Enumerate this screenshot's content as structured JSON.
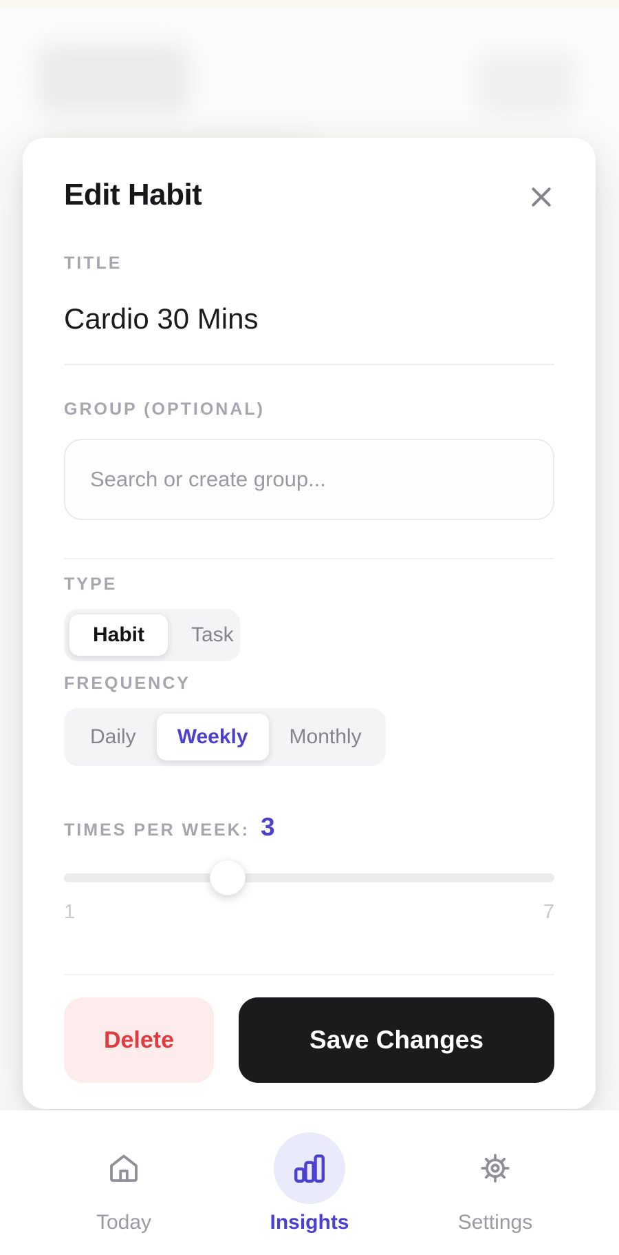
{
  "modal": {
    "title": "Edit Habit",
    "title_field": {
      "label": "TITLE",
      "value": "Cardio 30 Mins"
    },
    "group_field": {
      "label": "GROUP (OPTIONAL)",
      "placeholder": "Search or create group..."
    },
    "type_field": {
      "label": "TYPE",
      "options": [
        "Habit",
        "Task"
      ],
      "selected": "Habit"
    },
    "frequency_field": {
      "label": "FREQUENCY",
      "options": [
        "Daily",
        "Weekly",
        "Monthly"
      ],
      "selected": "Weekly"
    },
    "times_per_week": {
      "label": "TIMES PER WEEK:",
      "value": 3,
      "min": 1,
      "max": 7
    },
    "buttons": {
      "delete": "Delete",
      "save": "Save Changes"
    }
  },
  "nav": {
    "items": [
      {
        "label": "Today",
        "icon": "home-icon",
        "active": false
      },
      {
        "label": "Insights",
        "icon": "bar-chart-icon",
        "active": true
      },
      {
        "label": "Settings",
        "icon": "gear-icon",
        "active": false
      }
    ]
  },
  "colors": {
    "accent": "#4b40d2",
    "accent_soft_bg": "#e9ebfa",
    "danger_text": "#e23b3f",
    "danger_bg": "#fdecec",
    "save_bg": "#1b1b1e",
    "label_gray": "#a6a6ae"
  }
}
